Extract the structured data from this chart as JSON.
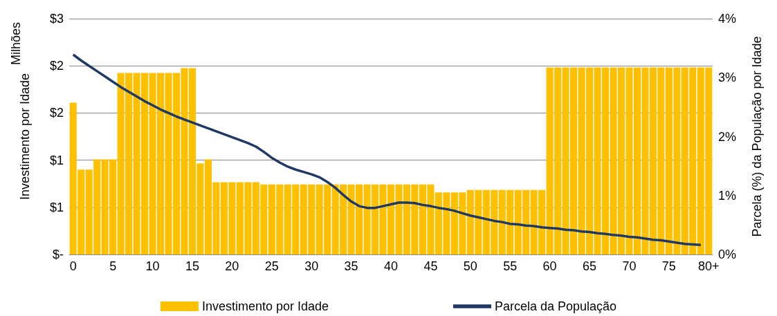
{
  "chart_data": {
    "type": "bar",
    "ylabel": "Investimento por Idade",
    "y2label": "Parcela (%) da População por Idade",
    "annotations": [
      "Milhões"
    ],
    "categories": [
      "0",
      null,
      null,
      null,
      null,
      "5",
      null,
      null,
      null,
      null,
      "10",
      null,
      null,
      null,
      null,
      "15",
      null,
      null,
      null,
      null,
      "20",
      null,
      null,
      null,
      null,
      "25",
      null,
      null,
      null,
      null,
      "30",
      null,
      null,
      null,
      null,
      "35",
      null,
      null,
      null,
      null,
      "40",
      null,
      null,
      null,
      null,
      "45",
      null,
      null,
      null,
      null,
      "50",
      null,
      null,
      null,
      null,
      "55",
      null,
      null,
      null,
      null,
      "60",
      null,
      null,
      null,
      null,
      "65",
      null,
      null,
      null,
      null,
      "70",
      null,
      null,
      null,
      null,
      "75",
      null,
      null,
      null,
      null,
      "80+"
    ],
    "series": [
      {
        "name": "Investimento por Idade",
        "color": "#ffc000",
        "values": [
          1.93,
          1.08,
          1.08,
          1.21,
          1.21,
          1.21,
          2.31,
          2.31,
          2.31,
          2.31,
          2.31,
          2.31,
          2.31,
          2.31,
          2.37,
          2.37,
          1.16,
          1.21,
          0.92,
          0.92,
          0.92,
          0.92,
          0.92,
          0.92,
          0.89,
          0.89,
          0.89,
          0.89,
          0.89,
          0.89,
          0.89,
          0.89,
          0.89,
          0.89,
          0.89,
          0.89,
          0.89,
          0.89,
          0.89,
          0.89,
          0.89,
          0.89,
          0.89,
          0.89,
          0.89,
          0.89,
          0.79,
          0.79,
          0.79,
          0.79,
          0.82,
          0.82,
          0.82,
          0.82,
          0.82,
          0.82,
          0.82,
          0.82,
          0.82,
          0.82,
          2.38,
          2.38,
          2.38,
          2.38,
          2.38,
          2.38,
          2.38,
          2.38,
          2.38,
          2.38,
          2.38,
          2.38,
          2.38,
          2.38,
          2.38,
          2.38,
          2.38,
          2.38,
          2.38,
          2.38,
          2.38
        ]
      },
      {
        "name": "Parcela da População",
        "type": "line",
        "axis": "y2",
        "color": "#203864",
        "values": [
          3.39,
          3.29,
          3.2,
          3.11,
          3.02,
          2.93,
          2.84,
          2.76,
          2.68,
          2.6,
          2.53,
          2.46,
          2.4,
          2.34,
          2.29,
          2.24,
          2.19,
          2.14,
          2.09,
          2.04,
          1.99,
          1.94,
          1.89,
          1.83,
          1.74,
          1.64,
          1.56,
          1.49,
          1.44,
          1.4,
          1.36,
          1.31,
          1.23,
          1.13,
          1.01,
          0.9,
          0.82,
          0.79,
          0.79,
          0.82,
          0.85,
          0.88,
          0.88,
          0.87,
          0.84,
          0.82,
          0.79,
          0.77,
          0.74,
          0.7,
          0.66,
          0.63,
          0.6,
          0.57,
          0.55,
          0.52,
          0.51,
          0.49,
          0.48,
          0.46,
          0.45,
          0.44,
          0.42,
          0.41,
          0.39,
          0.38,
          0.36,
          0.35,
          0.33,
          0.32,
          0.3,
          0.29,
          0.27,
          0.25,
          0.24,
          0.22,
          0.2,
          0.18,
          0.17,
          0.16,
          null
        ]
      }
    ],
    "ylim": [
      0,
      3
    ],
    "yticks": [
      {
        "value": 0,
        "label": "$-"
      },
      {
        "value": 0.6,
        "label": "$1"
      },
      {
        "value": 1.2,
        "label": "$1"
      },
      {
        "value": 1.8,
        "label": "$2"
      },
      {
        "value": 2.4,
        "label": "$2"
      },
      {
        "value": 3,
        "label": "$3"
      }
    ],
    "y2lim": [
      0,
      4
    ],
    "y2ticks": [
      {
        "value": 0,
        "label": "0%"
      },
      {
        "value": 1,
        "label": "1%"
      },
      {
        "value": 2,
        "label": "2%"
      },
      {
        "value": 3,
        "label": "3%"
      },
      {
        "value": 4,
        "label": "4%"
      }
    ],
    "grid": "y",
    "legend": "bottom",
    "marker": "none",
    "line_style": "solid"
  }
}
